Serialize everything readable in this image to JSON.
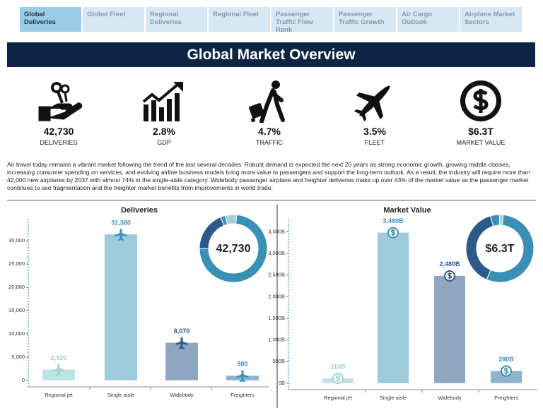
{
  "tabs": [
    "Global Deliveries",
    "Global Fleet",
    "Regional Deliveries",
    "Regional Fleet",
    "Passenger Traffic Flow Rank",
    "Passenger Traffic Growth",
    "Air Cargo Outlook",
    "Airplane Market Sectors"
  ],
  "title": "Global Market Overview",
  "kpis": [
    {
      "value": "42,730",
      "label": "DELIVERIES"
    },
    {
      "value": "2.8%",
      "label": "GDP"
    },
    {
      "value": "4.7%",
      "label": "TRAFFIC"
    },
    {
      "value": "3.5%",
      "label": "FLEET"
    },
    {
      "value": "$6.3T",
      "label": "MARKET VALUE"
    }
  ],
  "paragraph": "Air travel today remains a vibrant market following the trend of the last several decades. Robust demand is expected the next 20 years as strong economic growth, growing middle classes, increasing consumer spending on services, and evolving airline business models bring more value to passengers and support the long-term outlook.  As a result, the industry will require more than 42,000 new airplanes by 2037 with almost 74% in the single-aisle category. Widebody passenger airplane and freighter deliveries make up over 43% of the market value as the passenger market continues to see fragmentation and the freighter market benefits from improvements in world trade.",
  "chart_data": [
    {
      "type": "bar",
      "title": "Deliveries",
      "categories": [
        "Regional jet",
        "Single aisle",
        "Widebody",
        "Freighters"
      ],
      "values": [
        2320,
        31360,
        8070,
        980
      ],
      "value_labels": [
        "2,320",
        "31,360",
        "8,070",
        "980"
      ],
      "colors": [
        "#bfe3e3",
        "#9dcbdc",
        "#8fa6c0",
        "#8fb4cc"
      ],
      "accent_colors": [
        "#9fd3d3",
        "#3a8fb7",
        "#2c5a8a",
        "#3a8fb7"
      ],
      "marker": "plane",
      "center_label": "42,730",
      "ylim": [
        -1400,
        34700
      ],
      "yticks": [
        0,
        {
          "value": 5000,
          "label": "5,000"
        },
        {
          "value": 10000,
          "label": "10,000"
        },
        {
          "value": 15000,
          "label": "15,000"
        },
        {
          "value": 20000,
          "label": "20,000"
        },
        {
          "value": 25000,
          "label": "25,000"
        },
        {
          "value": 30000,
          "label": "30,000"
        }
      ]
    },
    {
      "type": "bar",
      "title": "Market Value",
      "categories": [
        "Regional jet",
        "Single aisle",
        "Widebody",
        "Freighters"
      ],
      "values": [
        110,
        3480,
        2480,
        280
      ],
      "value_labels": [
        "110B",
        "3,480B",
        "2,480B",
        "280B"
      ],
      "colors": [
        "#bfe3e3",
        "#9dcbdc",
        "#8fa6c0",
        "#8fb4cc"
      ],
      "accent_colors": [
        "#9fd3d3",
        "#3a8fb7",
        "#2c5a8a",
        "#3a8fb7"
      ],
      "marker": "dollar",
      "center_label": "$6.3T",
      "ylim": [
        -150,
        3800
      ],
      "yticks": [
        {
          "value": 0,
          "label": "0B"
        },
        {
          "value": 500,
          "label": "500B"
        },
        {
          "value": 1000,
          "label": "1,000B"
        },
        {
          "value": 1500,
          "label": "1,500B"
        },
        {
          "value": 2000,
          "label": "2,000B"
        },
        {
          "value": 2500,
          "label": "2,500B"
        },
        {
          "value": 3000,
          "label": "3,000B"
        },
        {
          "value": 3500,
          "label": "3,500B"
        }
      ]
    }
  ]
}
